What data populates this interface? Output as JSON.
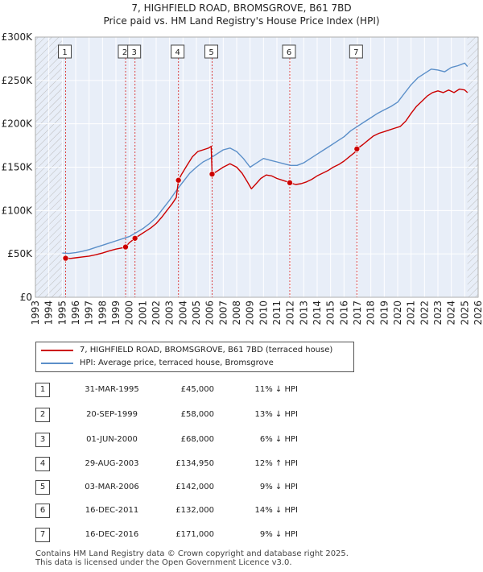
{
  "title_line1": "7, HIGHFIELD ROAD, BROMSGROVE, B61 7BD",
  "title_line2": "Price paid vs. HM Land Registry's House Price Index (HPI)",
  "colors": {
    "price": "#cc0000",
    "hpi": "#5b8fc9",
    "shade": "#e8eef8",
    "hatch": "#bbbbbb",
    "vline": "#dd4444"
  },
  "chart_data": {
    "type": "line",
    "title": "7, HIGHFIELD ROAD, BROMSGROVE, B61 7BD — Price paid vs. HM Land Registry's House Price Index (HPI)",
    "xlim": [
      1993,
      2026
    ],
    "ylim": [
      0,
      300000
    ],
    "y_ticks": [
      0,
      50000,
      100000,
      150000,
      200000,
      250000,
      300000
    ],
    "y_tick_labels": [
      "£0",
      "£50K",
      "£100K",
      "£150K",
      "£200K",
      "£250K",
      "£300K"
    ],
    "x_ticks": [
      1993,
      1994,
      1995,
      1996,
      1997,
      1998,
      1999,
      2000,
      2001,
      2002,
      2003,
      2004,
      2005,
      2006,
      2007,
      2008,
      2009,
      2010,
      2011,
      2012,
      2013,
      2014,
      2015,
      2016,
      2017,
      2018,
      2019,
      2020,
      2021,
      2022,
      2023,
      2024,
      2025,
      2026
    ],
    "x_tick_labels": [
      "1993",
      "1994",
      "1995",
      "1996",
      "1997",
      "1998",
      "1999",
      "2000",
      "2001",
      "2002",
      "2003",
      "2004",
      "2005",
      "2006",
      "2007",
      "2008",
      "2009",
      "2010",
      "2011",
      "2012",
      "2013",
      "2014",
      "2015",
      "2016",
      "2017",
      "2018",
      "2019",
      "2020",
      "2021",
      "2022",
      "2023",
      "2024",
      "2025",
      "2026"
    ],
    "data_start": 1995.0,
    "data_end": 2025.2,
    "series": [
      {
        "name": "7, HIGHFIELD ROAD, BROMSGROVE, B61 7BD (terraced house)",
        "color": "#cc0000",
        "x": [
          1995.25,
          1995.6,
          1996.0,
          1996.5,
          1997.0,
          1997.5,
          1998.0,
          1998.5,
          1999.0,
          1999.5,
          1999.72,
          2000.0,
          2000.42,
          2000.8,
          2001.2,
          2001.6,
          2002.0,
          2002.4,
          2002.8,
          2003.2,
          2003.5,
          2003.66,
          2003.9,
          2004.3,
          2004.7,
          2005.1,
          2005.5,
          2005.9,
          2006.1,
          2006.17,
          2006.5,
          2007.0,
          2007.5,
          2008.0,
          2008.4,
          2008.8,
          2009.1,
          2009.4,
          2009.8,
          2010.2,
          2010.6,
          2011.0,
          2011.4,
          2011.8,
          2011.96,
          2012.4,
          2012.8,
          2013.2,
          2013.6,
          2014.0,
          2014.4,
          2014.8,
          2015.2,
          2015.6,
          2016.0,
          2016.4,
          2016.8,
          2016.96,
          2017.4,
          2017.8,
          2018.2,
          2018.6,
          2019.0,
          2019.4,
          2019.8,
          2020.2,
          2020.6,
          2021.0,
          2021.4,
          2021.8,
          2022.2,
          2022.6,
          2023.0,
          2023.4,
          2023.8,
          2024.2,
          2024.6,
          2025.0,
          2025.2
        ],
        "values": [
          45000,
          44800,
          45500,
          46500,
          47500,
          49000,
          51000,
          53500,
          55500,
          57000,
          58000,
          63000,
          68000,
          72000,
          76000,
          80000,
          85000,
          92000,
          100000,
          108000,
          115000,
          134950,
          142000,
          152000,
          162000,
          168000,
          170000,
          172000,
          174000,
          142000,
          145000,
          150000,
          154000,
          150000,
          143000,
          133000,
          125000,
          130000,
          137000,
          141000,
          140000,
          137000,
          135000,
          133000,
          132000,
          130000,
          131000,
          133000,
          136000,
          140000,
          143000,
          146000,
          150000,
          153000,
          157000,
          162000,
          167000,
          171000,
          176000,
          181000,
          186000,
          189000,
          191000,
          193000,
          195000,
          197000,
          203000,
          212000,
          220000,
          226000,
          232000,
          236000,
          238000,
          236000,
          239000,
          236000,
          240000,
          239000,
          236000
        ]
      },
      {
        "name": "HPI: Average price, terraced house, Bromsgrove",
        "color": "#5b8fc9",
        "x": [
          1995.0,
          1995.5,
          1996.0,
          1996.5,
          1997.0,
          1997.5,
          1998.0,
          1998.5,
          1999.0,
          1999.5,
          2000.0,
          2000.5,
          2001.0,
          2001.5,
          2002.0,
          2002.5,
          2003.0,
          2003.5,
          2004.0,
          2004.5,
          2005.0,
          2005.5,
          2006.0,
          2006.5,
          2007.0,
          2007.5,
          2008.0,
          2008.5,
          2009.0,
          2009.5,
          2010.0,
          2010.5,
          2011.0,
          2011.5,
          2012.0,
          2012.5,
          2013.0,
          2013.5,
          2014.0,
          2014.5,
          2015.0,
          2015.5,
          2016.0,
          2016.5,
          2017.0,
          2017.5,
          2018.0,
          2018.5,
          2019.0,
          2019.5,
          2020.0,
          2020.5,
          2021.0,
          2021.5,
          2022.0,
          2022.5,
          2023.0,
          2023.5,
          2024.0,
          2024.5,
          2025.0,
          2025.2
        ],
        "values": [
          51000,
          50500,
          51500,
          53000,
          55000,
          57500,
          60000,
          62500,
          65000,
          67500,
          70000,
          74500,
          79000,
          85000,
          92000,
          102000,
          112000,
          123000,
          133000,
          143000,
          150000,
          156000,
          160000,
          165000,
          170000,
          172000,
          168000,
          160000,
          150000,
          155000,
          160000,
          158000,
          156000,
          154000,
          152000,
          152000,
          155000,
          160000,
          165000,
          170000,
          175000,
          180000,
          185000,
          192000,
          197000,
          202000,
          207000,
          212000,
          216000,
          220000,
          225000,
          235000,
          245000,
          253000,
          258000,
          263000,
          262000,
          260000,
          265000,
          267000,
          270000,
          266000
        ]
      }
    ],
    "sales": [
      {
        "label": "1",
        "date": "31-MAR-1995",
        "x": 1995.25,
        "value": 45000
      },
      {
        "label": "2",
        "date": "20-SEP-1999",
        "x": 1999.72,
        "value": 58000
      },
      {
        "label": "3",
        "date": "01-JUN-2000",
        "x": 2000.42,
        "value": 68000
      },
      {
        "label": "4",
        "date": "29-AUG-2003",
        "x": 2003.66,
        "value": 134950
      },
      {
        "label": "5",
        "date": "03-MAR-2006",
        "x": 2006.17,
        "value": 142000
      },
      {
        "label": "6",
        "date": "16-DEC-2011",
        "x": 2011.96,
        "value": 132000
      },
      {
        "label": "7",
        "date": "16-DEC-2016",
        "x": 2016.96,
        "value": 171000
      }
    ]
  },
  "legend": {
    "price_label": "7, HIGHFIELD ROAD, BROMSGROVE, B61 7BD (terraced house)",
    "hpi_label": "HPI: Average price, terraced house, Bromsgrove"
  },
  "table": [
    {
      "num": "1",
      "date": "31-MAR-1995",
      "price": "£45,000",
      "hpi": "11% ↓ HPI"
    },
    {
      "num": "2",
      "date": "20-SEP-1999",
      "price": "£58,000",
      "hpi": "13% ↓ HPI"
    },
    {
      "num": "3",
      "date": "01-JUN-2000",
      "price": "£68,000",
      "hpi": "6% ↓ HPI"
    },
    {
      "num": "4",
      "date": "29-AUG-2003",
      "price": "£134,950",
      "hpi": "12% ↑ HPI"
    },
    {
      "num": "5",
      "date": "03-MAR-2006",
      "price": "£142,000",
      "hpi": "9% ↓ HPI"
    },
    {
      "num": "6",
      "date": "16-DEC-2011",
      "price": "£132,000",
      "hpi": "14% ↓ HPI"
    },
    {
      "num": "7",
      "date": "16-DEC-2016",
      "price": "£171,000",
      "hpi": "9% ↓ HPI"
    }
  ],
  "footer": {
    "line1": "Contains HM Land Registry data © Crown copyright and database right 2025.",
    "line2": "This data is licensed under the Open Government Licence v3.0."
  }
}
